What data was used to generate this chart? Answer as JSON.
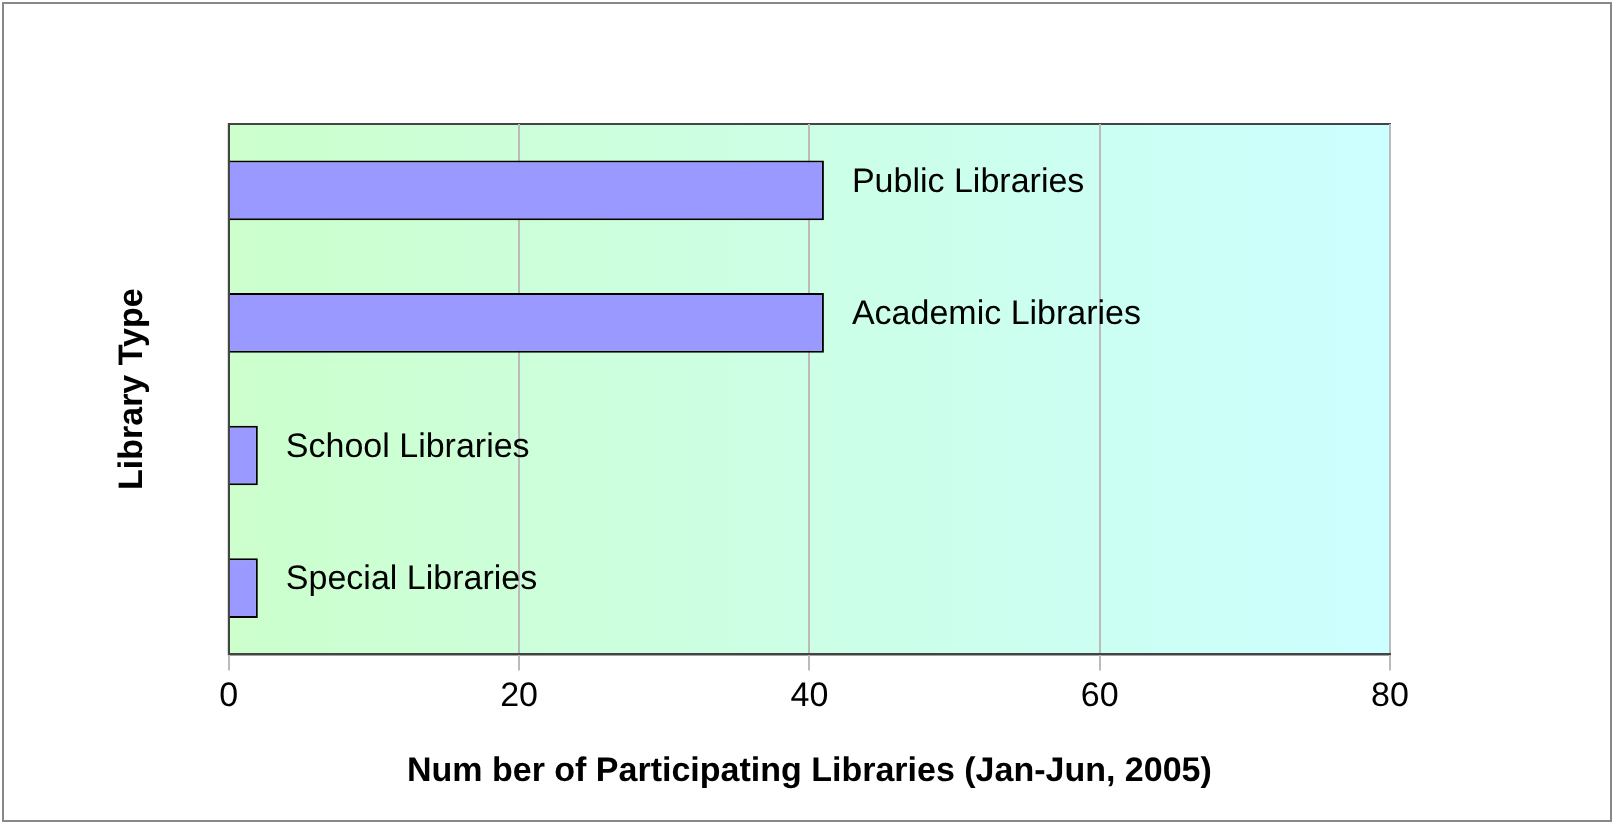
{
  "chart_data": {
    "type": "bar",
    "orientation": "horizontal",
    "categories": [
      "Public Libraries",
      "Academic Libraries",
      "School Libraries",
      "Special Libraries"
    ],
    "values": [
      41,
      41,
      2,
      2
    ],
    "color": "#9999ff",
    "xlim": [
      0,
      80
    ],
    "xticks": [
      0,
      20,
      40,
      60,
      80
    ],
    "grid": "x",
    "legend": false,
    "tick_labels": "x",
    "xlabel": "Num ber of Participating Libraries (Jan-Jun, 2005)",
    "ylabel": "Library Type"
  }
}
